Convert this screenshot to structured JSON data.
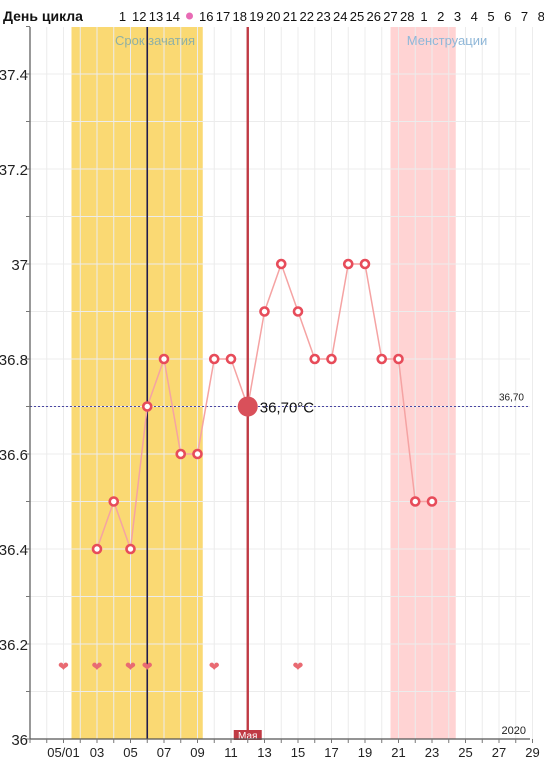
{
  "header": {
    "cycle_label": "День цикла",
    "cycle_days": [
      "1",
      "12",
      "13",
      "14",
      "•",
      "16",
      "17",
      "18",
      "19",
      "20",
      "21",
      "22",
      "23",
      "24",
      "25",
      "26",
      "27",
      "28",
      "1",
      "2",
      "3",
      "4",
      "5",
      "6",
      "7",
      "8"
    ]
  },
  "bands": {
    "fertile_label": "Срок зачатия",
    "menstruation_label": "Менструации"
  },
  "year_label": "2020",
  "month_marker": "Мая",
  "reference_line": {
    "value": 36.7,
    "label": "36,70"
  },
  "selected_point": {
    "x": 13,
    "value": 36.7,
    "label": "36,70°C"
  },
  "chart_data": {
    "type": "line",
    "ylim": [
      36.0,
      37.5
    ],
    "y_ticks": [
      "36",
      "36.2",
      "36.4",
      "36.6",
      "36.8",
      "37",
      "37.2",
      "37.4"
    ],
    "x_tick_labels": [
      "05/01",
      "03",
      "05",
      "07",
      "09",
      "11",
      "13",
      "15",
      "17",
      "19",
      "21",
      "23",
      "25",
      "27",
      "29"
    ],
    "series": [
      {
        "x": [
          4,
          5,
          6,
          7,
          8,
          9,
          10,
          11,
          12,
          13,
          14,
          15,
          16,
          17,
          18,
          19,
          20,
          21,
          22,
          23,
          24
        ],
        "values": [
          36.4,
          36.5,
          36.4,
          36.7,
          36.8,
          36.6,
          36.6,
          36.8,
          36.8,
          36.7,
          36.9,
          37.0,
          36.9,
          36.8,
          36.8,
          37.0,
          37.0,
          36.8,
          36.8,
          36.5,
          36.5
        ]
      }
    ],
    "heart_x": [
      2,
      4,
      6,
      7,
      11,
      16
    ],
    "fertile_range": [
      2,
      9
    ],
    "menstruation_range": [
      22,
      25
    ],
    "vertical_lines": [
      7,
      13
    ]
  },
  "colors": {
    "fertile_band": "#fad973",
    "menstruation_band": "#ffd3d3",
    "line": "#f5a3a3",
    "point": "#e74c5a",
    "selected": "#d9505a",
    "cursor_dark": "#1f1b4d",
    "cursor_red": "#c03a44",
    "heart": "#e96a72",
    "ref_line": "#4a47a3"
  }
}
